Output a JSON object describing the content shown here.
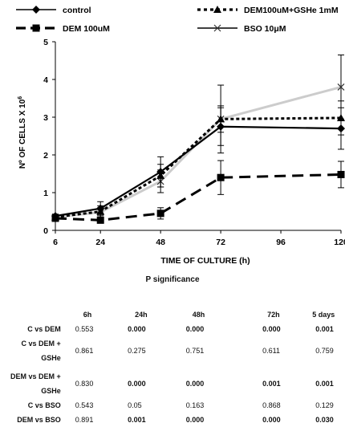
{
  "chart_data": {
    "type": "line",
    "xlabel": "TIME OF CULTURE (h)",
    "ylabel": "Nº OF CELLS X 10",
    "ylabel_exp": "6",
    "x": [
      6,
      24,
      48,
      72,
      96,
      120
    ],
    "xticks": [
      "6",
      "24",
      "48",
      "72",
      "96",
      "120"
    ],
    "ylim": [
      0,
      5
    ],
    "yticks": [
      "0",
      "1",
      "2",
      "3",
      "4",
      "5"
    ],
    "legend_position": "top",
    "series": [
      {
        "name": "control",
        "marker": "diamond",
        "style": "solid",
        "color": "#000000",
        "x": [
          6,
          24,
          48,
          72,
          120
        ],
        "values": [
          0.38,
          0.58,
          1.55,
          2.75,
          2.7
        ],
        "err": [
          0.05,
          0.18,
          0.4,
          0.5,
          0.55
        ]
      },
      {
        "name": "DEM100uM+GSHe 1mM",
        "marker": "triangle",
        "style": "dotted",
        "color": "#000000",
        "x": [
          6,
          24,
          48,
          72,
          120
        ],
        "values": [
          0.35,
          0.5,
          1.45,
          2.95,
          2.98
        ],
        "err": [
          0.05,
          0.15,
          0.3,
          0.35,
          0.45
        ]
      },
      {
        "name": "DEM 100uM",
        "marker": "square",
        "style": "dashed",
        "color": "#000000",
        "x": [
          6,
          24,
          48,
          72,
          120
        ],
        "values": [
          0.32,
          0.27,
          0.45,
          1.4,
          1.48
        ],
        "err": [
          0.05,
          0.08,
          0.15,
          0.45,
          0.35
        ]
      },
      {
        "name": "BSO 10μM",
        "marker": "x",
        "style": "solid",
        "color": "#cccccc",
        "x": [
          6,
          24,
          48,
          72,
          120
        ],
        "values": [
          0.35,
          0.48,
          1.3,
          2.95,
          3.8
        ],
        "err": [
          0.05,
          0.12,
          0.3,
          0.9,
          0.85
        ]
      }
    ]
  },
  "significance": {
    "title": "P significance",
    "columns": [
      "6h",
      "24h",
      "48h",
      "72h",
      "5 days"
    ],
    "rows": [
      {
        "label": "C vs DEM",
        "values": [
          "0.553",
          "0.000",
          "0.000",
          "0.000",
          "0.001"
        ],
        "bold": [
          false,
          true,
          true,
          true,
          true
        ]
      },
      {
        "label": "C vs DEM + GSHe",
        "values": [
          "0.861",
          "0.275",
          "0.751",
          "0.611",
          "0.759"
        ],
        "bold": [
          false,
          false,
          false,
          false,
          false
        ]
      },
      {
        "label": "DEM vs DEM + GSHe",
        "values": [
          "0.830",
          "0.000",
          "0.000",
          "0.001",
          "0.001"
        ],
        "bold": [
          false,
          true,
          true,
          true,
          true
        ]
      },
      {
        "label": "C vs BSO",
        "values": [
          "0.543",
          "0.05",
          "0.163",
          "0.868",
          "0.129"
        ],
        "bold": [
          false,
          false,
          false,
          false,
          false
        ]
      },
      {
        "label": "DEM vs BSO",
        "values": [
          "0.891",
          "0.001",
          "0.000",
          "0.000",
          "0.030"
        ],
        "bold": [
          false,
          true,
          true,
          true,
          true
        ]
      }
    ]
  }
}
